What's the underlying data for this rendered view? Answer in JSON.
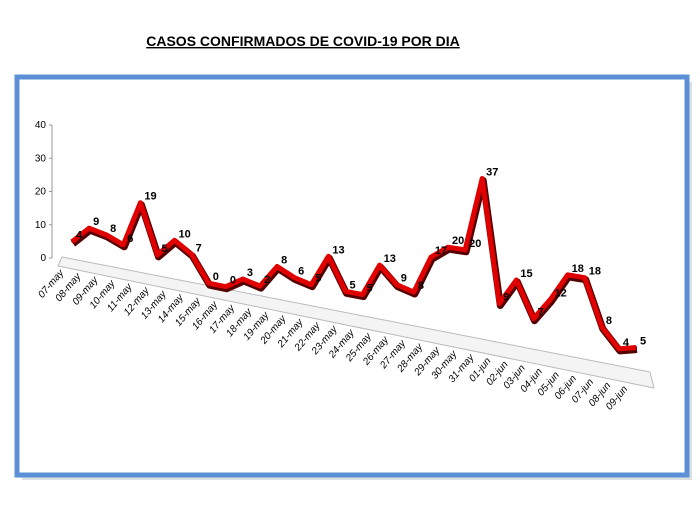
{
  "chart_data": {
    "type": "line",
    "title": "CASOS CONFIRMADOS DE COVID-19 POR DIA",
    "categories": [
      "07-may",
      "08-may",
      "09-may",
      "10-may",
      "11-may",
      "12-may",
      "13-may",
      "14-may",
      "15-may",
      "16-may",
      "17-may",
      "18-may",
      "19-may",
      "20-may",
      "21-may",
      "22-may",
      "23-may",
      "24-may",
      "25-may",
      "26-may",
      "27-may",
      "28-may",
      "29-may",
      "30-may",
      "31-may",
      "01-jun",
      "02-jun",
      "03-jun",
      "04-jun",
      "05-jun",
      "06-jun",
      "07-jun",
      "08-jun",
      "09-jun"
    ],
    "values": [
      4,
      9,
      8,
      6,
      19,
      5,
      10,
      7,
      0,
      0,
      3,
      2,
      8,
      6,
      5,
      13,
      5,
      5,
      13,
      9,
      8,
      17,
      20,
      20,
      37,
      9,
      15,
      7,
      12,
      18,
      18,
      8,
      4,
      5
    ],
    "color": "#e00000",
    "ylim": [
      0,
      40
    ],
    "yticks": [
      0,
      10,
      20,
      30,
      40
    ]
  }
}
